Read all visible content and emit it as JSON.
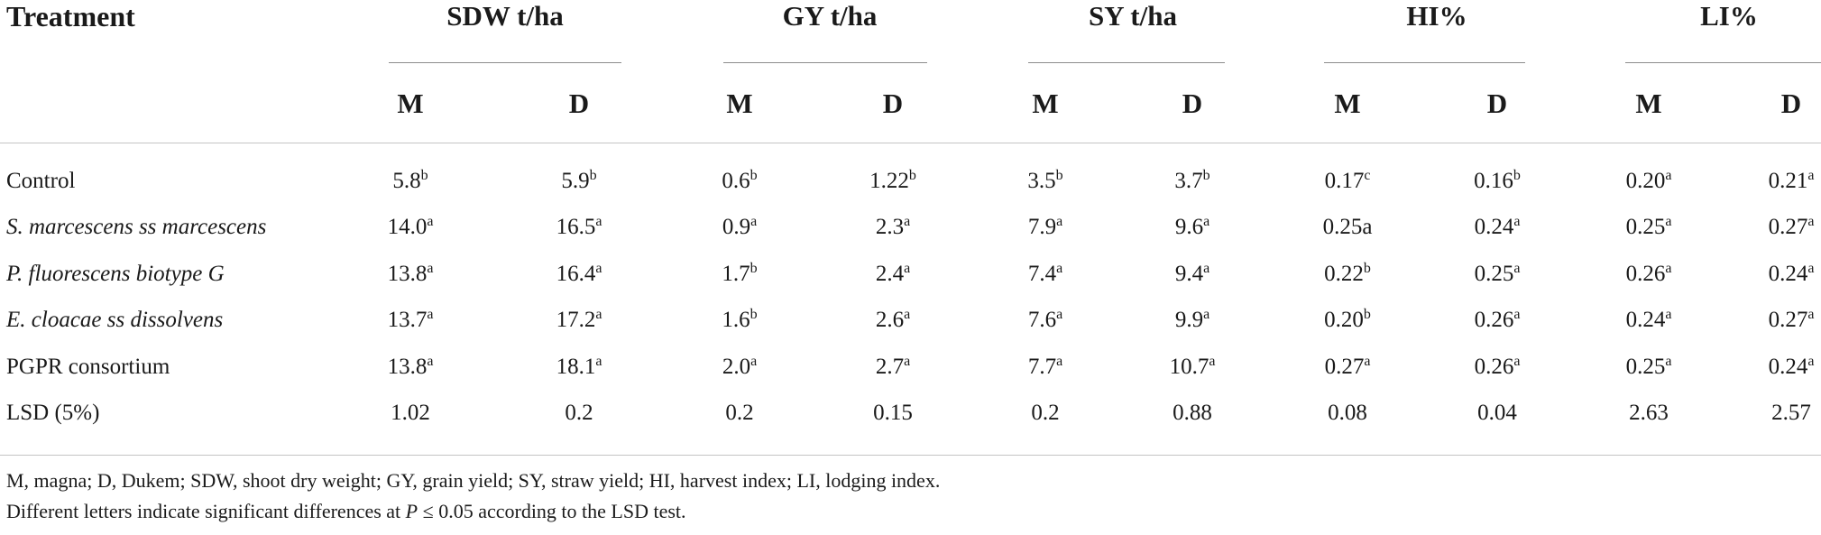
{
  "table": {
    "treatment_header": "Treatment",
    "groups": [
      {
        "label": "SDW t/ha",
        "sub": [
          "M",
          "D"
        ]
      },
      {
        "label": "GY t/ha",
        "sub": [
          "M",
          "D"
        ]
      },
      {
        "label": "SY t/ha",
        "sub": [
          "M",
          "D"
        ]
      },
      {
        "label": "HI%",
        "sub": [
          "M",
          "D"
        ]
      },
      {
        "label": "LI%",
        "sub": [
          "M",
          "D"
        ]
      }
    ],
    "rows": [
      {
        "label": "Control",
        "italic": false,
        "cells": [
          {
            "v": "5.8",
            "s": "b"
          },
          {
            "v": "5.9",
            "s": "b"
          },
          {
            "v": "0.6",
            "s": "b"
          },
          {
            "v": "1.22",
            "s": "b"
          },
          {
            "v": "3.5",
            "s": "b"
          },
          {
            "v": "3.7",
            "s": "b"
          },
          {
            "v": "0.17",
            "s": "c"
          },
          {
            "v": "0.16",
            "s": "b"
          },
          {
            "v": "0.20",
            "s": "a"
          },
          {
            "v": "0.21",
            "s": "a"
          }
        ]
      },
      {
        "label": "S. marcescens ss marcescens",
        "italic": true,
        "cells": [
          {
            "v": "14.0",
            "s": "a"
          },
          {
            "v": "16.5",
            "s": "a"
          },
          {
            "v": "0.9",
            "s": "a"
          },
          {
            "v": "2.3",
            "s": "a"
          },
          {
            "v": "7.9",
            "s": "a"
          },
          {
            "v": "9.6",
            "s": "a"
          },
          {
            "v": "0.25a",
            "s": ""
          },
          {
            "v": "0.24",
            "s": "a"
          },
          {
            "v": "0.25",
            "s": "a"
          },
          {
            "v": "0.27",
            "s": "a"
          }
        ]
      },
      {
        "label": "P. fluorescens biotype G",
        "italic": true,
        "cells": [
          {
            "v": "13.8",
            "s": "a"
          },
          {
            "v": "16.4",
            "s": "a"
          },
          {
            "v": "1.7",
            "s": "b"
          },
          {
            "v": "2.4",
            "s": "a"
          },
          {
            "v": "7.4",
            "s": "a"
          },
          {
            "v": "9.4",
            "s": "a"
          },
          {
            "v": "0.22",
            "s": "b"
          },
          {
            "v": "0.25",
            "s": "a"
          },
          {
            "v": "0.26",
            "s": "a"
          },
          {
            "v": "0.24",
            "s": "a"
          }
        ]
      },
      {
        "label": "E. cloacae ss dissolvens",
        "italic": true,
        "cells": [
          {
            "v": "13.7",
            "s": "a"
          },
          {
            "v": "17.2",
            "s": "a"
          },
          {
            "v": "1.6",
            "s": "b"
          },
          {
            "v": "2.6",
            "s": "a"
          },
          {
            "v": "7.6",
            "s": "a"
          },
          {
            "v": "9.9",
            "s": "a"
          },
          {
            "v": "0.20",
            "s": "b"
          },
          {
            "v": "0.26",
            "s": "a"
          },
          {
            "v": "0.24",
            "s": "a"
          },
          {
            "v": "0.27",
            "s": "a"
          }
        ]
      },
      {
        "label": "PGPR consortium",
        "italic": false,
        "cells": [
          {
            "v": "13.8",
            "s": "a"
          },
          {
            "v": "18.1",
            "s": "a"
          },
          {
            "v": "2.0",
            "s": "a"
          },
          {
            "v": "2.7",
            "s": "a"
          },
          {
            "v": "7.7",
            "s": "a"
          },
          {
            "v": "10.7",
            "s": "a"
          },
          {
            "v": "0.27",
            "s": "a"
          },
          {
            "v": "0.26",
            "s": "a"
          },
          {
            "v": "0.25",
            "s": "a"
          },
          {
            "v": "0.24",
            "s": "a"
          }
        ]
      },
      {
        "label": "LSD (5%)",
        "italic": false,
        "cells": [
          {
            "v": "1.02",
            "s": ""
          },
          {
            "v": "0.2",
            "s": ""
          },
          {
            "v": "0.2",
            "s": ""
          },
          {
            "v": "0.15",
            "s": ""
          },
          {
            "v": "0.2",
            "s": ""
          },
          {
            "v": "0.88",
            "s": ""
          },
          {
            "v": "0.08",
            "s": ""
          },
          {
            "v": "0.04",
            "s": ""
          },
          {
            "v": "2.63",
            "s": ""
          },
          {
            "v": "2.57",
            "s": ""
          }
        ]
      }
    ]
  },
  "footnotes": {
    "abbreviations": "M, magna; D, Dukem; SDW, shoot dry weight; GY, grain yield; SY, straw yield; HI, harvest index; LI, lodging index.",
    "significance_before": "Different letters indicate significant differences at ",
    "significance_symbol": "P",
    "significance_after": " ≤ 0.05 according to the LSD test."
  }
}
